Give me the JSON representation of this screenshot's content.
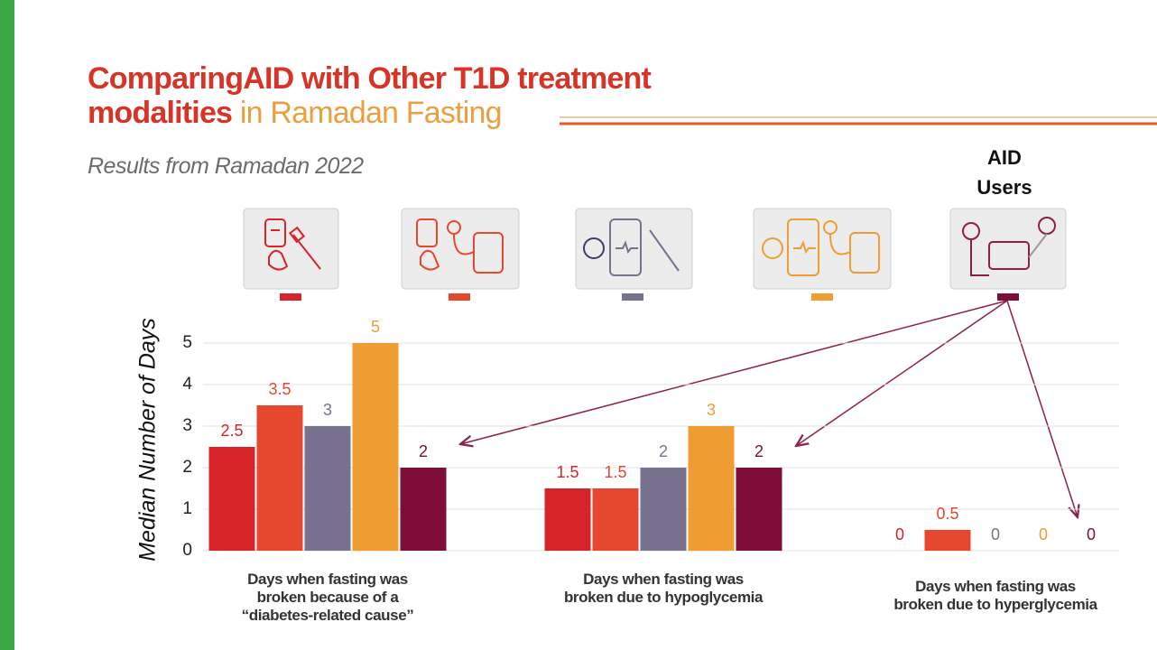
{
  "chart_data": {
    "type": "bar",
    "title": {
      "main": "ComparingAID with Other T1D treatment modalities",
      "highlight": "in Ramadan Fasting"
    },
    "subtitle": "Results from Ramadan 2022",
    "annotation": "AID Users",
    "y_label": "Median Number of Days",
    "categories": [
      "Days when fasting was broken because of a “diabetes-related cause”",
      "Days when fasting was broken due to hypoglycemia",
      "Days when fasting was broken due to hyperglycemia"
    ],
    "series": [
      {
        "color": "#d7242b",
        "values": [
          2.5,
          1.5,
          0
        ]
      },
      {
        "color": "#e6472f",
        "values": [
          3.5,
          1.5,
          0.5
        ]
      },
      {
        "color": "#787190",
        "values": [
          3,
          2,
          0
        ]
      },
      {
        "color": "#ef9c32",
        "values": [
          5,
          3,
          0
        ]
      },
      {
        "color": "#7e0d3a",
        "values": [
          2,
          2,
          0
        ]
      }
    ],
    "ylim": [
      0,
      5
    ],
    "yticks": [
      0,
      1,
      2,
      3,
      4,
      5
    ],
    "grid": true
  }
}
